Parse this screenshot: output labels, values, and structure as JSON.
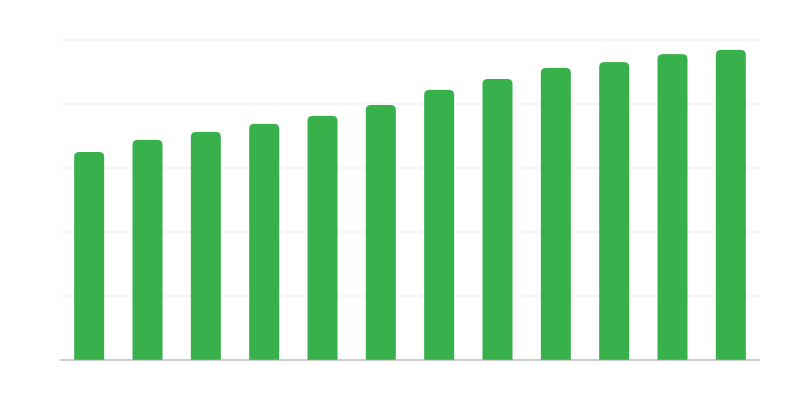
{
  "chart_data": {
    "type": "bar",
    "categories": [
      null,
      null,
      null,
      null,
      null,
      null,
      null,
      null,
      null,
      null,
      null,
      null
    ],
    "values": [
      65,
      68.8,
      71.3,
      73.8,
      76.3,
      79.7,
      84.4,
      87.8,
      91.3,
      93.1,
      95.6,
      96.9
    ],
    "color": "#38b14c",
    "ylim": [
      0,
      100
    ],
    "yticks": [
      0,
      20,
      40,
      60,
      80,
      100
    ],
    "grid": true
  }
}
